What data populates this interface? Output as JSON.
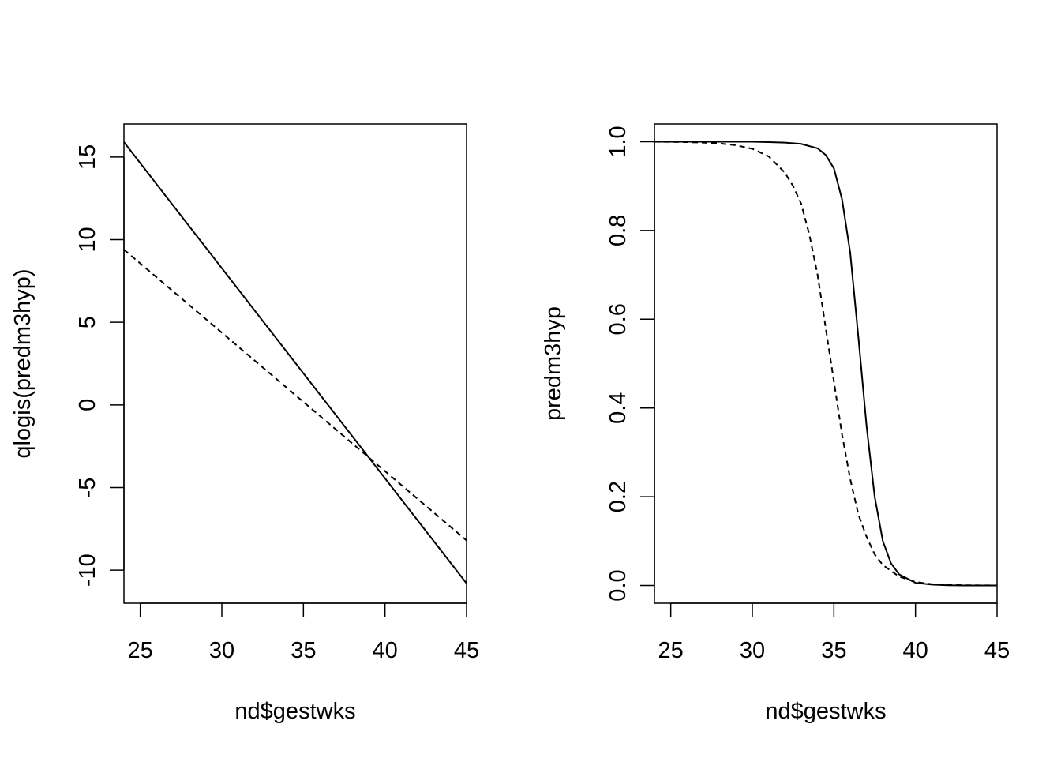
{
  "chart_data": [
    {
      "type": "line",
      "title": "",
      "xlabel": "nd$gestwks",
      "ylabel": "qlogis(predm3hyp)",
      "xlim": [
        24,
        45
      ],
      "ylim": [
        -12,
        17
      ],
      "x_ticks": [
        25,
        30,
        35,
        40,
        45
      ],
      "y_ticks": [
        -10,
        -5,
        0,
        5,
        10,
        15
      ],
      "x_tick_labels": [
        "25",
        "30",
        "35",
        "40",
        "45"
      ],
      "y_tick_labels": [
        "-10",
        "-5",
        "0",
        "5",
        "10",
        "15"
      ],
      "grid": false,
      "legend": "none",
      "series": [
        {
          "style": "solid",
          "color": "#000000",
          "x": [
            24,
            45
          ],
          "y": [
            15.9,
            -10.8
          ]
        },
        {
          "style": "dashed",
          "color": "#000000",
          "x": [
            24,
            45
          ],
          "y": [
            9.4,
            -8.2
          ]
        }
      ]
    },
    {
      "type": "line",
      "title": "",
      "xlabel": "nd$gestwks",
      "ylabel": "predm3hyp",
      "xlim": [
        24,
        45
      ],
      "ylim": [
        -0.04,
        1.04
      ],
      "x_ticks": [
        25,
        30,
        35,
        40,
        45
      ],
      "y_ticks": [
        0.0,
        0.2,
        0.4,
        0.6,
        0.8,
        1.0
      ],
      "x_tick_labels": [
        "25",
        "30",
        "35",
        "40",
        "45"
      ],
      "y_tick_labels": [
        "0.0",
        "0.2",
        "0.4",
        "0.6",
        "0.8",
        "1.0"
      ],
      "grid": false,
      "legend": "none",
      "series": [
        {
          "style": "solid",
          "color": "#000000",
          "x": [
            24,
            26,
            28,
            30,
            31,
            32,
            33,
            34,
            34.5,
            35,
            35.5,
            36,
            36.5,
            37,
            37.5,
            38,
            38.5,
            39,
            40,
            41,
            42,
            43,
            45
          ],
          "y": [
            1.0,
            1.0,
            1.0,
            1.0,
            0.999,
            0.998,
            0.995,
            0.985,
            0.97,
            0.94,
            0.87,
            0.75,
            0.56,
            0.36,
            0.2,
            0.1,
            0.05,
            0.025,
            0.006,
            0.002,
            0.0005,
            0.0001,
            0.0
          ]
        },
        {
          "style": "dashed",
          "color": "#000000",
          "x": [
            24,
            26,
            27,
            28,
            29,
            30,
            31,
            32,
            32.5,
            33,
            33.5,
            34,
            34.5,
            35,
            35.5,
            36,
            36.5,
            37,
            37.5,
            38,
            39,
            40,
            41,
            42,
            43,
            45
          ],
          "y": [
            1.0,
            0.999,
            0.998,
            0.996,
            0.992,
            0.984,
            0.967,
            0.93,
            0.9,
            0.86,
            0.79,
            0.7,
            0.58,
            0.46,
            0.34,
            0.24,
            0.16,
            0.11,
            0.07,
            0.046,
            0.02,
            0.008,
            0.003,
            0.0012,
            0.0005,
            0.0001
          ]
        }
      ]
    }
  ]
}
